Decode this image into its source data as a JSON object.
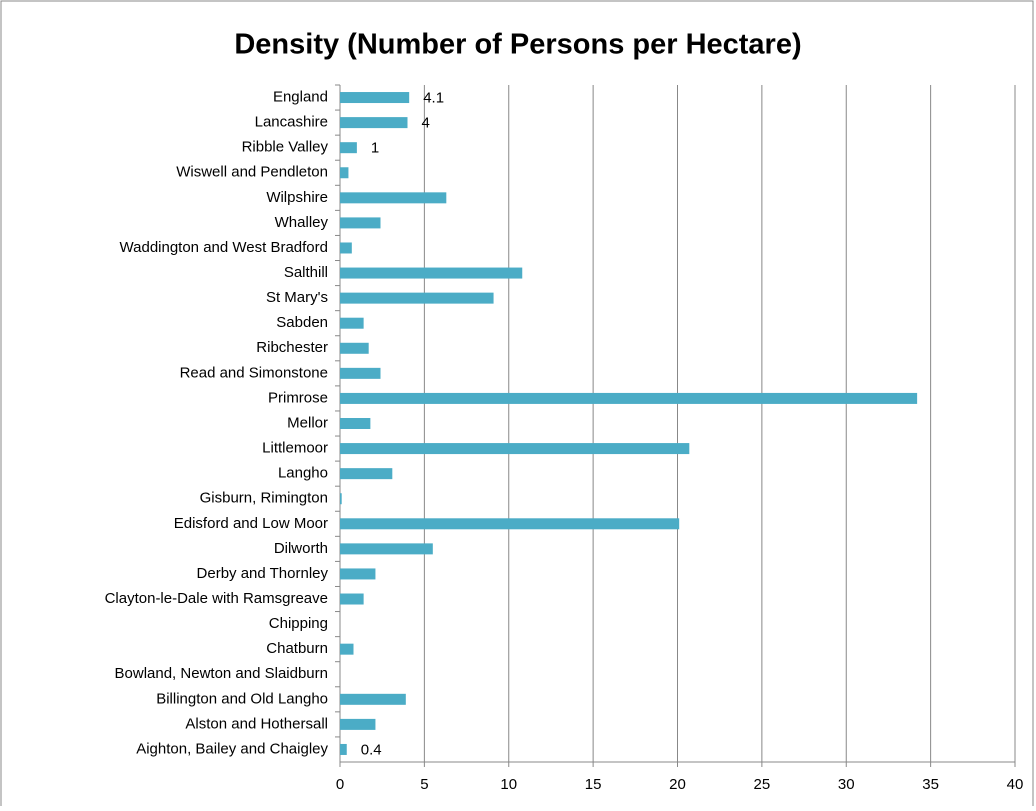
{
  "chart_data": {
    "type": "bar",
    "orientation": "horizontal",
    "title": "Density (Number of Persons per Hectare)",
    "categories": [
      "England",
      "Lancashire",
      "Ribble Valley",
      "Wiswell and Pendleton",
      "Wilpshire",
      "Whalley",
      "Waddington and West Bradford",
      "Salthill",
      "St Mary's",
      "Sabden",
      "Ribchester",
      "Read and Simonstone",
      "Primrose",
      "Mellor",
      "Littlemoor",
      "Langho",
      "Gisburn, Rimington",
      "Edisford and Low Moor",
      "Dilworth",
      "Derby and Thornley",
      "Clayton-le-Dale with Ramsgreave",
      "Chipping",
      "Chatburn",
      "Bowland, Newton and Slaidburn",
      "Billington and Old Langho",
      "Alston and Hothersall",
      "Aighton, Bailey and Chaigley"
    ],
    "values": [
      4.1,
      4,
      1,
      0.5,
      6.3,
      2.4,
      0.7,
      10.8,
      9.1,
      1.4,
      1.7,
      2.4,
      34.2,
      1.8,
      20.7,
      3.1,
      0.1,
      20.1,
      5.5,
      2.1,
      1.4,
      0,
      0.8,
      0,
      3.9,
      2.1,
      0.4
    ],
    "value_labels": [
      "4.1",
      "4",
      "1",
      null,
      null,
      null,
      null,
      null,
      null,
      null,
      null,
      null,
      null,
      null,
      null,
      null,
      null,
      null,
      null,
      null,
      null,
      null,
      null,
      null,
      null,
      null,
      "0.4"
    ],
    "color": "#4bacc6",
    "xlim": [
      0,
      40
    ],
    "xticks": [
      0,
      5,
      10,
      15,
      20,
      25,
      30,
      35,
      40
    ],
    "grid": true
  }
}
